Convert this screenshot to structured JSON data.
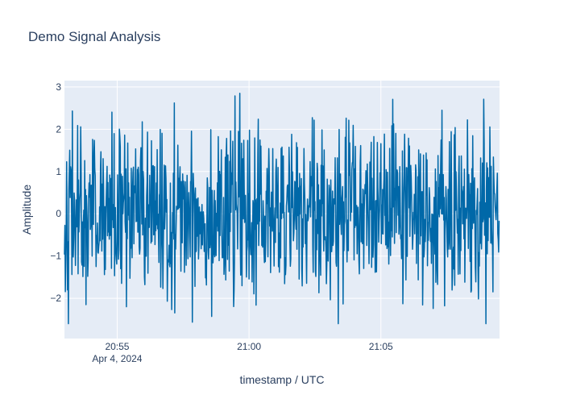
{
  "chart_data": {
    "type": "line",
    "title": "Demo Signal Analysis",
    "xlabel": "timestamp / UTC",
    "ylabel": "Amplitude",
    "x_range": [
      "2024-04-04T20:53:00",
      "2024-04-04T21:09:30"
    ],
    "ylim": [
      -2.95,
      3.15
    ],
    "x_ticks": [
      {
        "value": "2024-04-04T20:55:00",
        "label": "20:55",
        "sublabel": "Apr 4, 2024"
      },
      {
        "value": "2024-04-04T21:00:00",
        "label": "21:00",
        "sublabel": ""
      },
      {
        "value": "2024-04-04T21:05:00",
        "label": "21:05",
        "sublabel": ""
      }
    ],
    "y_ticks": [
      {
        "value": 3,
        "label": "3"
      },
      {
        "value": 2,
        "label": "2"
      },
      {
        "value": 1,
        "label": "1"
      },
      {
        "value": 0,
        "label": "0"
      },
      {
        "value": -1,
        "label": "−1"
      },
      {
        "value": -2,
        "label": "−2"
      }
    ],
    "grid": true,
    "colors": {
      "line": "#0068a8",
      "plot_bg": "#e5ecf6",
      "grid": "#ffffff",
      "text": "#2a3f5f"
    },
    "series": [
      {
        "start": "2024-04-04T20:53:00",
        "interval_seconds": 1,
        "point_count": 990,
        "generator": "seeded_noise",
        "seed": 42,
        "mean": 0,
        "std": 1
      }
    ]
  }
}
